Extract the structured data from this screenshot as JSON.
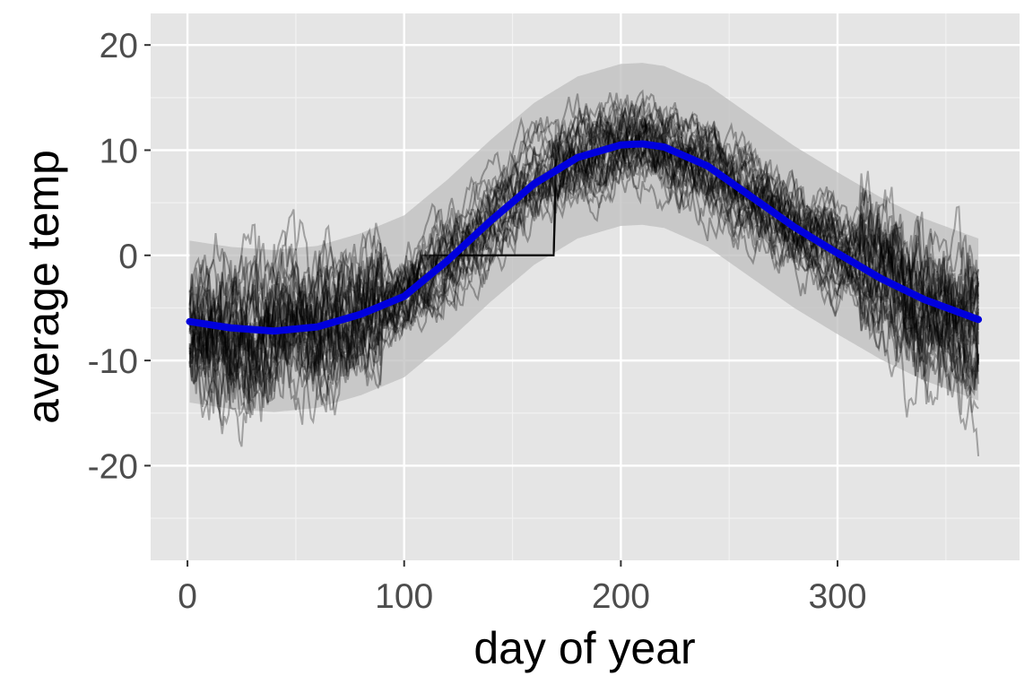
{
  "chart_data": {
    "type": "line",
    "title": "",
    "xlabel": "day of year",
    "ylabel": "average temp",
    "xlim": [
      -17,
      384
    ],
    "ylim": [
      -29,
      23
    ],
    "x_ticks": [
      0,
      100,
      200,
      300
    ],
    "y_ticks": [
      -20,
      -10,
      0,
      10,
      20
    ],
    "grid": true,
    "colors": {
      "panel": "#e5e5e5",
      "fit": "#0000dd",
      "ribbon": "#bdbdbd",
      "raw_lines": "#000000"
    },
    "fit_curve": {
      "x": [
        1,
        20,
        40,
        60,
        80,
        100,
        120,
        140,
        160,
        180,
        200,
        210,
        220,
        240,
        260,
        280,
        300,
        320,
        340,
        365
      ],
      "y": [
        -6.3,
        -6.9,
        -7.2,
        -6.8,
        -5.6,
        -3.9,
        -0.5,
        3.3,
        6.8,
        9.3,
        10.5,
        10.6,
        10.3,
        8.5,
        5.6,
        2.7,
        0.2,
        -2.2,
        -4.2,
        -6.1
      ]
    },
    "ribbon_halfwidth": 7.7,
    "raw_series_count": 35
  }
}
